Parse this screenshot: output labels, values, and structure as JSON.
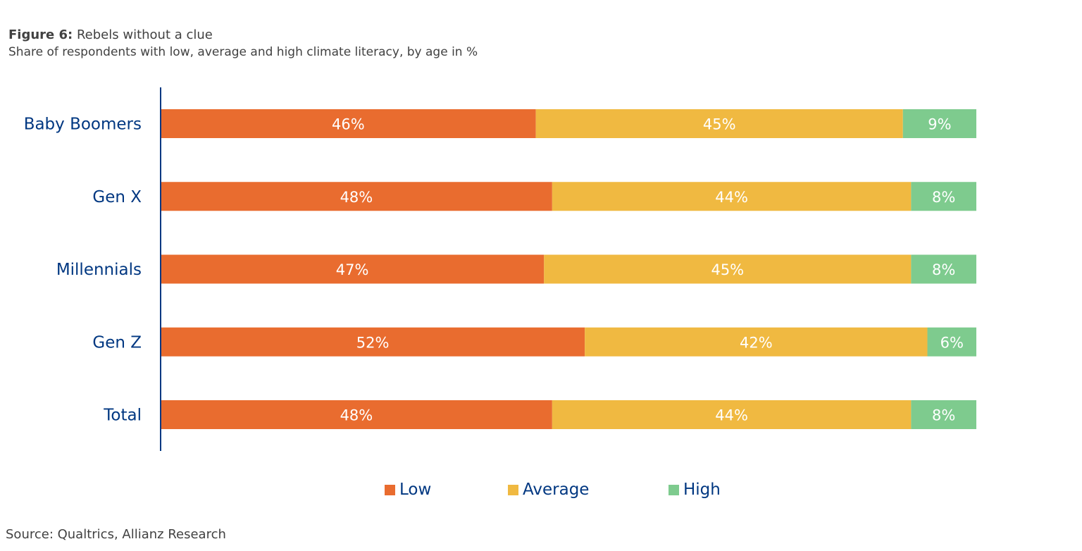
{
  "header": {
    "figure_label": "Figure 6:",
    "title": "Rebels without a clue",
    "subtitle": "Share of respondents with low, average and high climate literacy, by age in %"
  },
  "chart_data": {
    "type": "bar",
    "orientation": "horizontal",
    "stacked": true,
    "categories": [
      "Baby Boomers",
      "Gen X",
      "Millennials",
      "Gen Z",
      "Total"
    ],
    "series": [
      {
        "name": "Low",
        "values": [
          46,
          48,
          47,
          52,
          48
        ],
        "labels": [
          "46%",
          "48%",
          "47%",
          "52%",
          "48%"
        ],
        "color": "#e96c2f"
      },
      {
        "name": "Average",
        "values": [
          45,
          44,
          45,
          42,
          44
        ],
        "labels": [
          "45%",
          "44%",
          "45%",
          "42%",
          "44%"
        ],
        "color": "#f0b941"
      },
      {
        "name": "High",
        "values": [
          9,
          8,
          8,
          6,
          8
        ],
        "labels": [
          "9%",
          "8%",
          "8%",
          "6%",
          "8%"
        ],
        "color": "#7ecb8e"
      }
    ],
    "xlim": [
      0,
      100
    ],
    "grid": false,
    "legend_position": "bottom"
  },
  "colors": {
    "category_label": "#003781",
    "axis_line": "#003781",
    "bar_label": "#ffffff"
  },
  "source": "Source: Qualtrics, Allianz Research"
}
